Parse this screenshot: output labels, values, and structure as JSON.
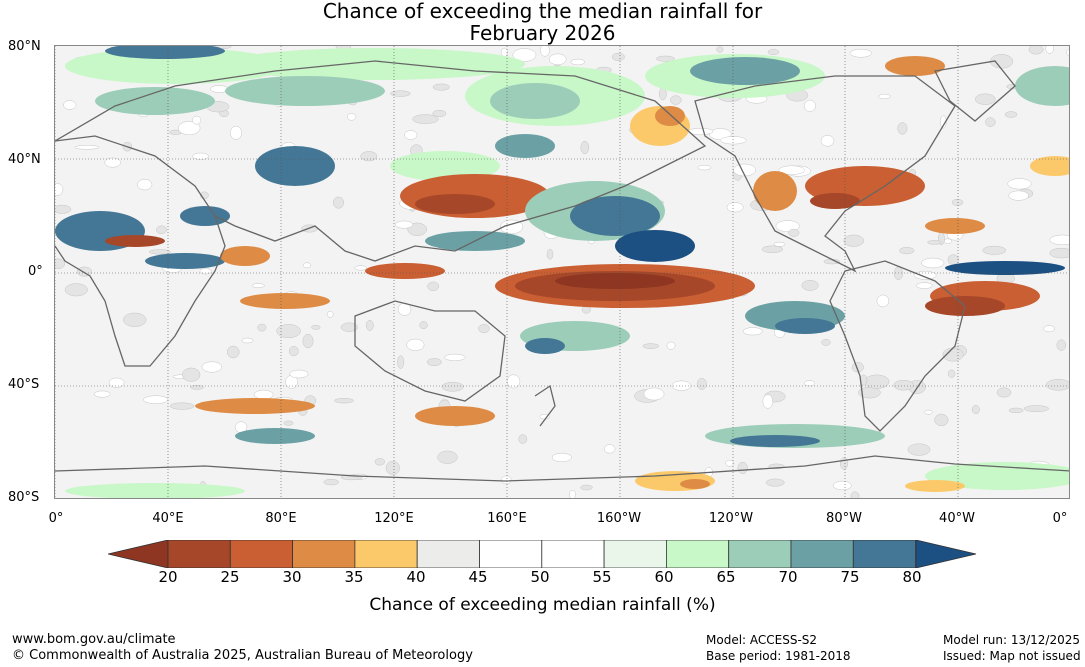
{
  "title": {
    "line1": "Chance of exceeding the median rainfall for",
    "line2": "February 2026"
  },
  "map": {
    "lat_labels": [
      "80°N",
      "40°N",
      "0°",
      "40°S",
      "80°S"
    ],
    "lon_labels": [
      "0°",
      "40°E",
      "80°E",
      "120°E",
      "160°E",
      "160°W",
      "120°W",
      "80°W",
      "40°W",
      "0°"
    ]
  },
  "colorbar": {
    "ticks": [
      "20",
      "25",
      "30",
      "35",
      "40",
      "45",
      "50",
      "55",
      "60",
      "65",
      "70",
      "75",
      "80"
    ],
    "colors": [
      "#a7472a",
      "#c95f32",
      "#de8c45",
      "#fcc96a",
      "#ececea",
      "#ffffff",
      "#ffffff",
      "#ebf6eb",
      "#c8f7c8",
      "#9ccdb8",
      "#6ba1a5",
      "#437795"
    ],
    "under_color": "#8e3621",
    "over_color": "#1c4f82",
    "label": "Chance of exceeding median rainfall (%)"
  },
  "footer": {
    "website": "www.bom.gov.au/climate",
    "copyright": "© Commonwealth of Australia 2025, Australian Bureau of Meteorology",
    "model": "Model: ACCESS-S2",
    "base_period": "Base period: 1981-2018",
    "model_run": "Model run: 13/12/2025",
    "issued": "Issued: Map not issued"
  }
}
